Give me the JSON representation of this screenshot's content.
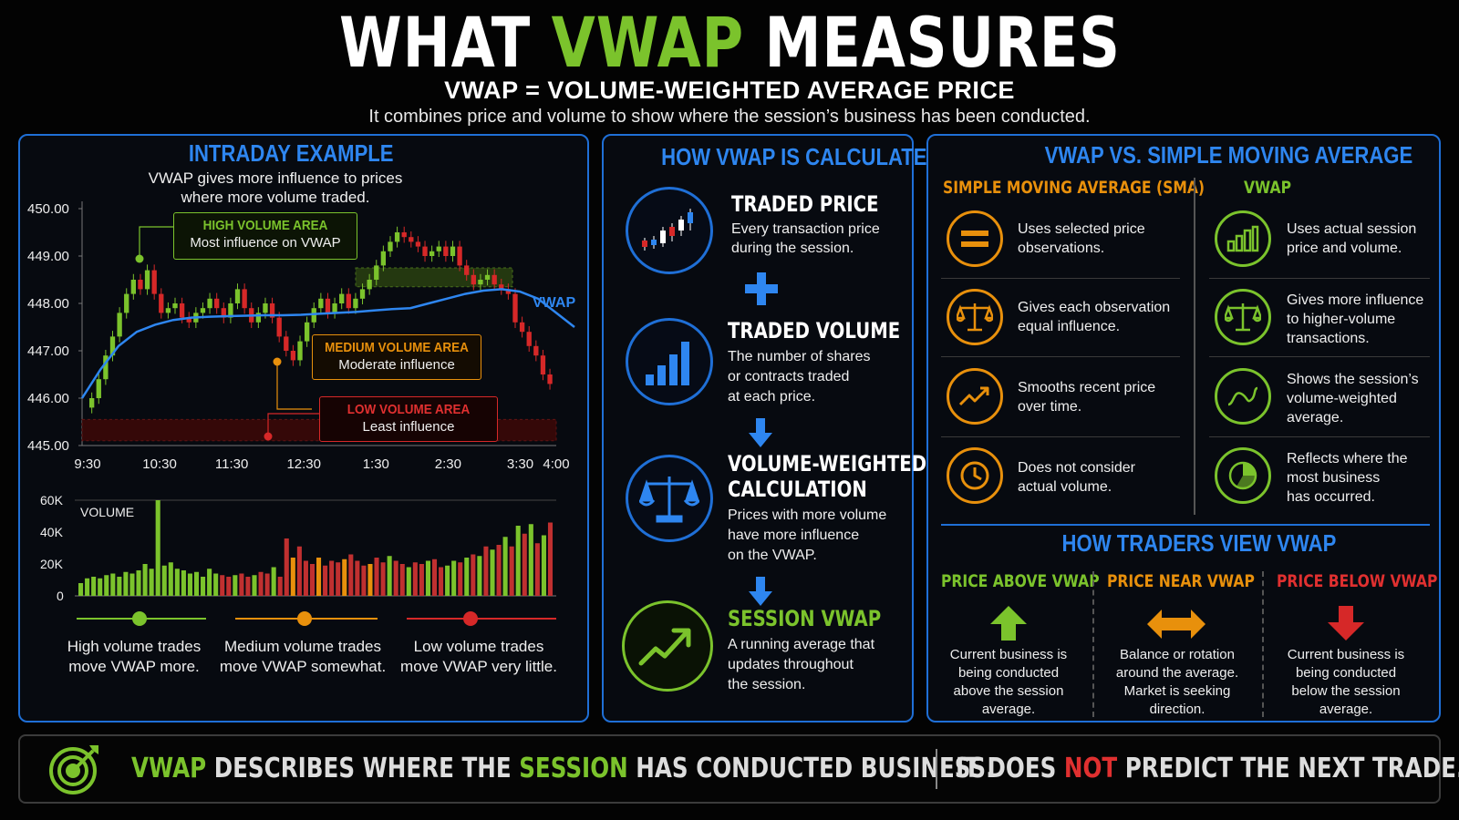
{
  "header": {
    "title_pre": "WHAT ",
    "title_accent": "VWAP",
    "title_post": " MEASURES",
    "subtitle": "VWAP = VOLUME-WEIGHTED AVERAGE PRICE",
    "tagline": "It combines price and volume to show where the session’s business has been conducted."
  },
  "intraday": {
    "title": "INTRADAY EXAMPLE",
    "desc_line1": "VWAP gives more influence to prices",
    "desc_line2": "where more volume traded.",
    "vwap_label": "VWAP",
    "volume_label": "VOLUME",
    "high_box": {
      "title": "HIGH VOLUME AREA",
      "text": "Most influence on VWAP"
    },
    "medium_box": {
      "title": "MEDIUM VOLUME AREA",
      "text": "Moderate influence"
    },
    "low_box": {
      "title": "LOW VOLUME AREA",
      "text": "Least influence"
    },
    "legend": [
      {
        "line1": "High volume trades",
        "line2": "move VWAP more.",
        "color": "#7bc32c"
      },
      {
        "line1": "Medium volume trades",
        "line2": "move VWAP somewhat.",
        "color": "#e8900c"
      },
      {
        "line1": "Low volume trades",
        "line2": "move VWAP very little.",
        "color": "#d62828"
      }
    ]
  },
  "chart_data": {
    "type": "candlestick",
    "title": "INTRADAY EXAMPLE",
    "x_ticks": [
      "9:30",
      "10:30",
      "11:30",
      "12:30",
      "1:30",
      "2:30",
      "3:30",
      "4:00"
    ],
    "y_ticks": [
      "450.00",
      "449.00",
      "448.00",
      "447.00",
      "446.00",
      "445.00"
    ],
    "ylim": [
      445,
      450
    ],
    "price_close": [
      446.0,
      446.4,
      446.9,
      447.3,
      447.8,
      448.2,
      448.5,
      448.3,
      448.7,
      448.2,
      447.8,
      447.9,
      448.0,
      447.7,
      447.6,
      447.8,
      447.9,
      448.1,
      447.9,
      447.7,
      448.0,
      448.3,
      447.9,
      447.6,
      447.8,
      448.0,
      447.7,
      447.3,
      447.0,
      446.8,
      447.2,
      447.6,
      447.9,
      448.1,
      447.8,
      448.0,
      448.2,
      447.9,
      448.1,
      448.3,
      448.5,
      448.8,
      449.1,
      449.3,
      449.5,
      449.4,
      449.3,
      449.2,
      449.0,
      449.1,
      449.2,
      449.0,
      449.2,
      448.8,
      448.6,
      448.4,
      448.5,
      448.6,
      448.4,
      448.3,
      448.2,
      447.6,
      447.4,
      447.1,
      446.9,
      446.5,
      446.3
    ],
    "vwap": [
      446.0,
      446.6,
      447.1,
      447.4,
      447.55,
      447.65,
      447.7,
      447.72,
      447.73,
      447.74,
      447.75,
      447.75,
      447.76,
      447.78,
      447.8,
      447.82,
      447.85,
      447.88,
      447.9,
      448.0,
      448.1,
      448.2,
      448.27,
      448.3,
      448.25,
      448.1,
      447.8,
      447.5
    ],
    "volume_ylim": [
      0,
      60000
    ],
    "volume_ticks": [
      "60K",
      "40K",
      "20K",
      "0"
    ],
    "volume": [
      8000,
      11000,
      12000,
      11000,
      13000,
      14000,
      12000,
      15000,
      14000,
      16000,
      20000,
      17000,
      60000,
      19000,
      21000,
      17000,
      16000,
      14000,
      15000,
      12000,
      17000,
      14000,
      13000,
      12000,
      13000,
      14000,
      12000,
      13000,
      15000,
      14000,
      18000,
      12000,
      36000,
      24000,
      31000,
      22000,
      20000,
      24000,
      19000,
      22000,
      21000,
      23000,
      26000,
      22000,
      19000,
      20000,
      24000,
      21000,
      25000,
      22000,
      20000,
      18000,
      21000,
      20000,
      22000,
      23000,
      18000,
      19000,
      22000,
      21000,
      24000,
      26000,
      25000,
      31000,
      29000,
      32000,
      37000,
      31000,
      44000,
      39000,
      45000,
      33000,
      38000,
      46000
    ],
    "volume_colors_note": "green/orange/red by candle"
  },
  "calc": {
    "title": "HOW VWAP IS CALCULATED",
    "steps": [
      {
        "title": "TRADED PRICE",
        "lines": [
          "Every transaction price",
          "during the session."
        ]
      },
      {
        "title": "TRADED VOLUME",
        "lines": [
          "The number of shares",
          "or contracts traded",
          "at each price."
        ]
      },
      {
        "title_1": "VOLUME-WEIGHTED",
        "title_2": "CALCULATION",
        "lines": [
          "Prices with more volume",
          "have more influence",
          "on the VWAP."
        ]
      },
      {
        "title": "SESSION VWAP",
        "lines": [
          "A running average that",
          "updates throughout",
          "the session."
        ]
      }
    ]
  },
  "compare": {
    "title": "VWAP VS. SIMPLE MOVING AVERAGE",
    "sma_heading": "SIMPLE MOVING AVERAGE (SMA)",
    "vwap_heading": "VWAP",
    "sma": [
      [
        "Uses selected price",
        "observations."
      ],
      [
        "Gives each observation",
        "equal influence."
      ],
      [
        "Smooths recent price",
        "over time."
      ],
      [
        "Does not consider",
        "actual volume."
      ]
    ],
    "vwap": [
      [
        "Uses actual session",
        "price and volume."
      ],
      [
        "Gives more influence",
        "to higher-volume",
        "transactions."
      ],
      [
        "Shows the session’s",
        "volume-weighted",
        "average."
      ],
      [
        "Reflects where the",
        "most business",
        "has occurred."
      ]
    ],
    "orange": "#e8900c",
    "green": "#7bc32c"
  },
  "traders": {
    "title": "HOW TRADERS VIEW VWAP",
    "above": {
      "heading": "PRICE ABOVE VWAP",
      "lines": [
        "Current business is",
        "being conducted",
        "above the session",
        "average."
      ]
    },
    "near": {
      "heading": "PRICE NEAR VWAP",
      "lines": [
        "Balance or rotation",
        "around the average.",
        "Market is seeking",
        "direction."
      ]
    },
    "below": {
      "heading": "PRICE BELOW VWAP",
      "lines": [
        "Current business is",
        "being conducted",
        "below the session",
        "average."
      ]
    }
  },
  "footer": {
    "p1": "VWAP",
    "p2": " DESCRIBES WHERE THE ",
    "p3": "SESSION",
    "p4": " HAS CONDUCTED BUSINESS.",
    "p5": "IT DOES ",
    "p6": "NOT",
    "p7": " PREDICT THE NEXT TRADE."
  }
}
